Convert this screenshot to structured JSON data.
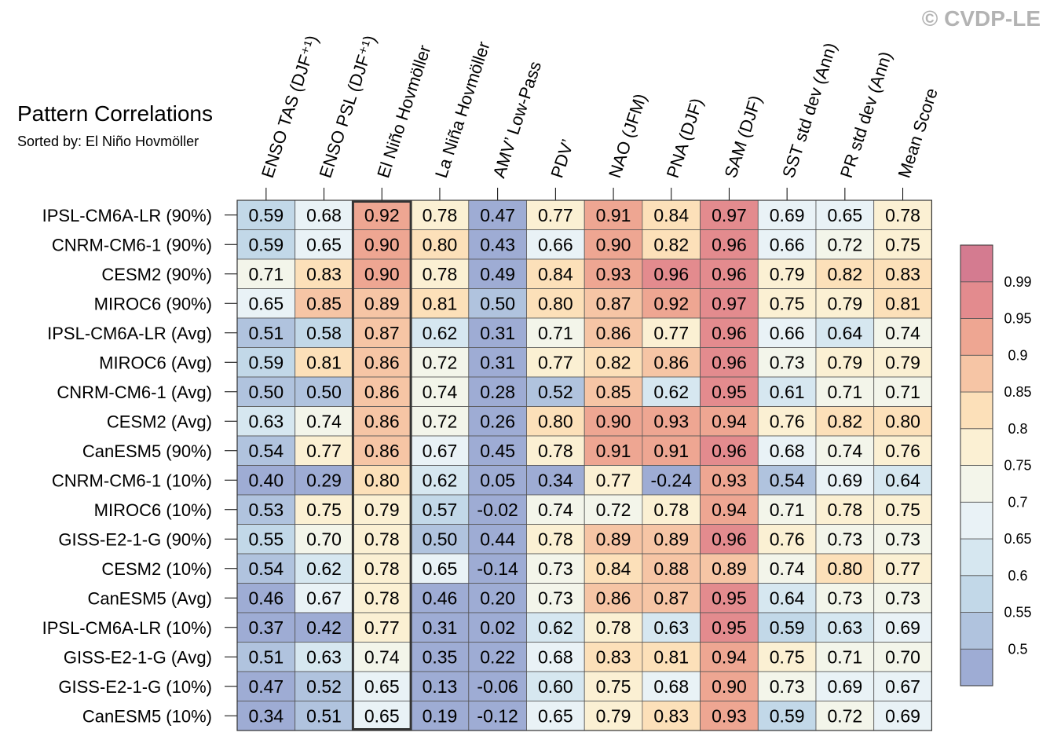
{
  "watermark": "© CVDP-LE",
  "chart_data": {
    "type": "heatmap",
    "title": "Pattern Correlations",
    "subtitle": "Sorted by: El Niño Hovmöller",
    "highlighted_column": "El Niño Hovmöller",
    "columns": [
      "ENSO TAS (DJF⁺¹)",
      "ENSO PSL (DJF⁺¹)",
      "El Niño Hovmöller",
      "La Niña Hovmöller",
      "AMV’ Low-Pass",
      "PDV’",
      "NAO (JFM)",
      "PNA (DJF)",
      "SAM (DJF)",
      "SST std dev (Ann)",
      "PR std dev (Ann)",
      "Mean Score"
    ],
    "rows": [
      {
        "name": "IPSL-CM6A-LR (90%)",
        "values": [
          "0.59",
          "0.68",
          "0.92",
          "0.78",
          "0.47",
          "0.77",
          "0.91",
          "0.84",
          "0.97",
          "0.69",
          "0.65",
          "0.78"
        ]
      },
      {
        "name": "CNRM-CM6-1 (90%)",
        "values": [
          "0.59",
          "0.65",
          "0.90",
          "0.80",
          "0.43",
          "0.66",
          "0.90",
          "0.82",
          "0.96",
          "0.66",
          "0.72",
          "0.75"
        ]
      },
      {
        "name": "CESM2 (90%)",
        "values": [
          "0.71",
          "0.83",
          "0.90",
          "0.78",
          "0.49",
          "0.84",
          "0.93",
          "0.96",
          "0.96",
          "0.79",
          "0.82",
          "0.83"
        ]
      },
      {
        "name": "MIROC6 (90%)",
        "values": [
          "0.65",
          "0.85",
          "0.89",
          "0.81",
          "0.50",
          "0.80",
          "0.87",
          "0.92",
          "0.97",
          "0.75",
          "0.79",
          "0.81"
        ]
      },
      {
        "name": "IPSL-CM6A-LR (Avg)",
        "values": [
          "0.51",
          "0.58",
          "0.87",
          "0.62",
          "0.31",
          "0.71",
          "0.86",
          "0.77",
          "0.96",
          "0.66",
          "0.64",
          "0.74"
        ]
      },
      {
        "name": "MIROC6 (Avg)",
        "values": [
          "0.59",
          "0.81",
          "0.86",
          "0.72",
          "0.31",
          "0.77",
          "0.82",
          "0.86",
          "0.96",
          "0.73",
          "0.79",
          "0.79"
        ]
      },
      {
        "name": "CNRM-CM6-1 (Avg)",
        "values": [
          "0.50",
          "0.50",
          "0.86",
          "0.74",
          "0.28",
          "0.52",
          "0.85",
          "0.62",
          "0.95",
          "0.61",
          "0.71",
          "0.71"
        ]
      },
      {
        "name": "CESM2 (Avg)",
        "values": [
          "0.63",
          "0.74",
          "0.86",
          "0.72",
          "0.26",
          "0.80",
          "0.90",
          "0.93",
          "0.94",
          "0.76",
          "0.82",
          "0.80"
        ]
      },
      {
        "name": "CanESM5 (90%)",
        "values": [
          "0.54",
          "0.77",
          "0.86",
          "0.67",
          "0.45",
          "0.78",
          "0.91",
          "0.91",
          "0.96",
          "0.68",
          "0.74",
          "0.76"
        ]
      },
      {
        "name": "CNRM-CM6-1 (10%)",
        "values": [
          "0.40",
          "0.29",
          "0.80",
          "0.62",
          "0.05",
          "0.34",
          "0.77",
          "-0.24",
          "0.93",
          "0.54",
          "0.69",
          "0.64"
        ]
      },
      {
        "name": "MIROC6 (10%)",
        "values": [
          "0.53",
          "0.75",
          "0.79",
          "0.57",
          "-0.02",
          "0.74",
          "0.72",
          "0.78",
          "0.94",
          "0.71",
          "0.78",
          "0.75"
        ]
      },
      {
        "name": "GISS-E2-1-G (90%)",
        "values": [
          "0.55",
          "0.70",
          "0.78",
          "0.50",
          "0.44",
          "0.78",
          "0.89",
          "0.89",
          "0.96",
          "0.76",
          "0.73",
          "0.73"
        ]
      },
      {
        "name": "CESM2 (10%)",
        "values": [
          "0.54",
          "0.62",
          "0.78",
          "0.65",
          "-0.14",
          "0.73",
          "0.84",
          "0.88",
          "0.89",
          "0.74",
          "0.80",
          "0.77"
        ]
      },
      {
        "name": "CanESM5 (Avg)",
        "values": [
          "0.46",
          "0.67",
          "0.78",
          "0.46",
          "0.20",
          "0.73",
          "0.86",
          "0.87",
          "0.95",
          "0.64",
          "0.73",
          "0.73"
        ]
      },
      {
        "name": "IPSL-CM6A-LR (10%)",
        "values": [
          "0.37",
          "0.42",
          "0.77",
          "0.31",
          "0.02",
          "0.62",
          "0.78",
          "0.63",
          "0.95",
          "0.59",
          "0.63",
          "0.69"
        ]
      },
      {
        "name": "GISS-E2-1-G (Avg)",
        "values": [
          "0.51",
          "0.63",
          "0.74",
          "0.35",
          "0.22",
          "0.68",
          "0.83",
          "0.81",
          "0.94",
          "0.75",
          "0.71",
          "0.70"
        ]
      },
      {
        "name": "GISS-E2-1-G (10%)",
        "values": [
          "0.47",
          "0.52",
          "0.65",
          "0.13",
          "-0.06",
          "0.60",
          "0.75",
          "0.68",
          "0.90",
          "0.73",
          "0.69",
          "0.67"
        ]
      },
      {
        "name": "CanESM5 (10%)",
        "values": [
          "0.34",
          "0.51",
          "0.65",
          "0.19",
          "-0.12",
          "0.65",
          "0.79",
          "0.83",
          "0.93",
          "0.59",
          "0.72",
          "0.69"
        ]
      }
    ],
    "colorbar": {
      "levels": [
        0.5,
        0.55,
        0.6,
        0.65,
        0.7,
        0.75,
        0.8,
        0.85,
        0.9,
        0.95,
        0.99
      ],
      "labels": [
        "0.5",
        "0.55",
        "0.6",
        "0.65",
        "0.7",
        "0.75",
        "0.8",
        "0.85",
        "0.9",
        "0.95",
        "0.99"
      ],
      "colors": [
        "#9eacd4",
        "#b0c3de",
        "#c2d8e8",
        "#d6e7f0",
        "#e9f2f6",
        "#f3f5ea",
        "#fbf0d3",
        "#fce0b9",
        "#f6c5a5",
        "#eea692",
        "#e38b8e",
        "#d47b90"
      ]
    }
  }
}
